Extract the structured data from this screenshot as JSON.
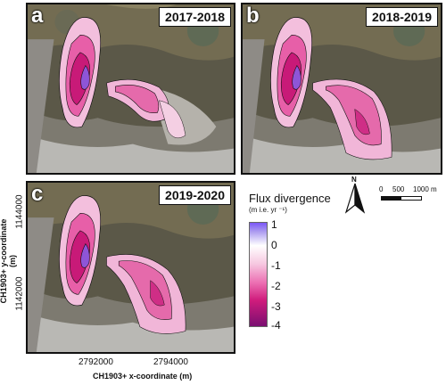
{
  "panels": [
    {
      "letter": "a",
      "year": "2017-2018"
    },
    {
      "letter": "b",
      "year": "2018-2019"
    },
    {
      "letter": "c",
      "year": "2019-2020"
    }
  ],
  "axes": {
    "y_label": "CH1903+ y-coordinate (m)",
    "y_ticks": [
      "1144000",
      "1142000"
    ],
    "x_label": "CH1903+ x-coordinate (m)",
    "x_ticks": [
      "2792000",
      "2794000"
    ]
  },
  "legend": {
    "title": "Flux divergence",
    "unit": "(m i.e. yr ⁻¹)",
    "ticks": [
      "1",
      "0",
      "-1",
      "-2",
      "-3",
      "-4"
    ],
    "range": [
      -4,
      1
    ],
    "colors": {
      "positive": "#7b57f7",
      "zero": "#ffffff",
      "negative": "#7a0f71"
    }
  },
  "north_arrow": {
    "label": "N"
  },
  "scale_bar": {
    "labels": [
      "0",
      "500",
      "1000 m"
    ]
  }
}
